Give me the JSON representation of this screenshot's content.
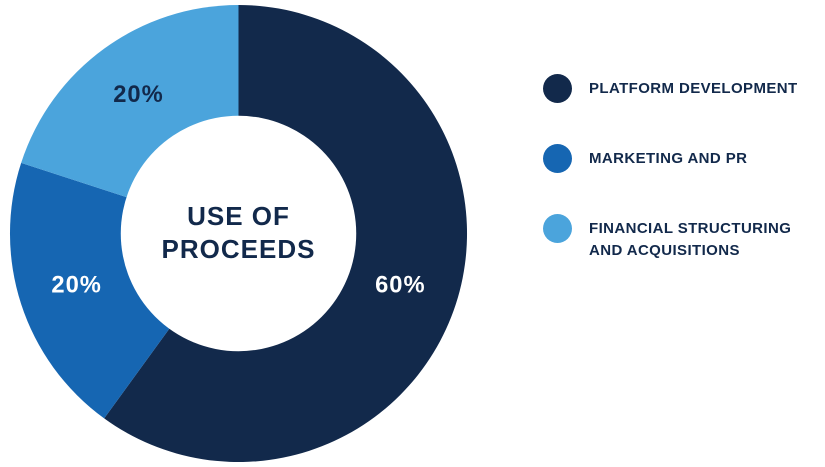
{
  "chart_data": {
    "type": "pie",
    "donut": true,
    "title": "USE OF PROCEEDS",
    "start_angle_deg": 0,
    "direction": "clockwise",
    "legend_position": "right",
    "slices": [
      {
        "label": "PLATFORM DEVELOPMENT",
        "value": 60,
        "pct_label": "60%",
        "color": "#12294B",
        "pct_label_color": "#FFFFFF"
      },
      {
        "label": "MARKETING AND PR",
        "value": 20,
        "pct_label": "20%",
        "color": "#1666B2",
        "pct_label_color": "#FFFFFF"
      },
      {
        "label": "FINANCIAL STRUCTURING AND ACQUISITIONS",
        "value": 20,
        "pct_label": "20%",
        "color": "#4BA4DC",
        "pct_label_color": "#12294B"
      }
    ]
  }
}
